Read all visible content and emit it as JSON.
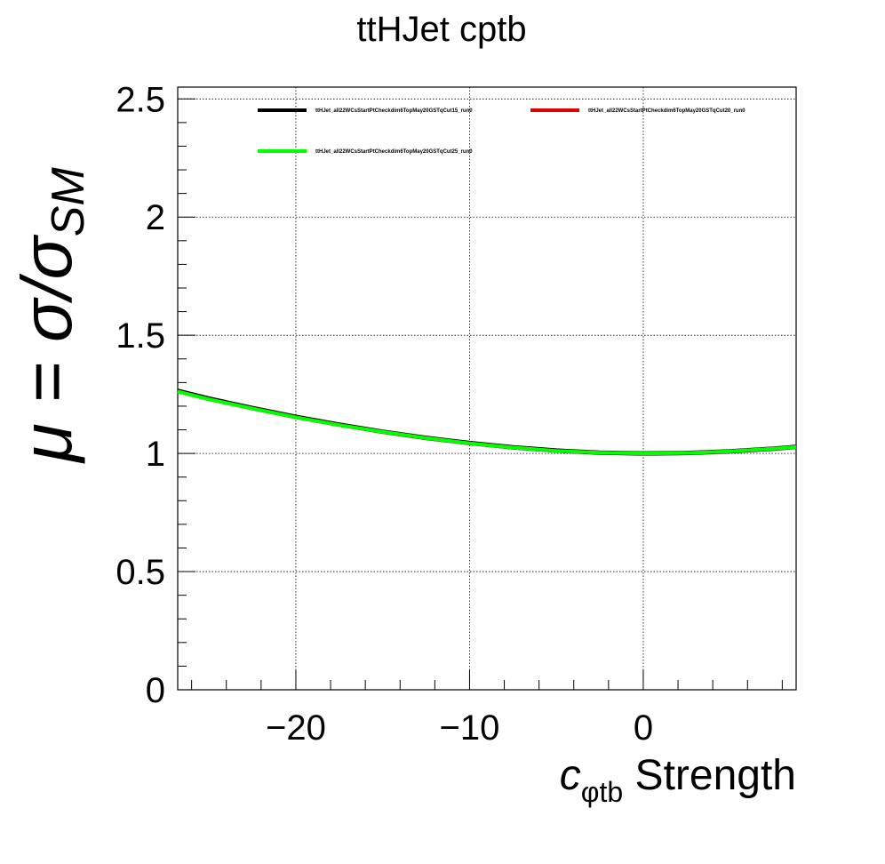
{
  "chart_data": {
    "type": "line",
    "title": "ttHJet cptb",
    "xlabel": {
      "symbol": "c",
      "subscript": "φtb",
      "text": "Strength"
    },
    "ylabel": {
      "prefix": "μ = σ/σ",
      "subscript": "SM"
    },
    "xlim": [
      -26.8,
      8.8
    ],
    "ylim": [
      0,
      2.55
    ],
    "grid": true,
    "legend_position": "top",
    "x_ticks": [
      -20,
      -10,
      0
    ],
    "x_tick_labels": [
      "−20",
      "−10",
      "0"
    ],
    "y_ticks": [
      0,
      0.5,
      1,
      1.5,
      2,
      2.5
    ],
    "y_tick_labels": [
      "0",
      "0.5",
      "1",
      "1.5",
      "2",
      "2.5"
    ],
    "x": [
      -26.8,
      -25,
      -22.5,
      -20,
      -17.5,
      -15,
      -12.5,
      -10,
      -7.5,
      -5,
      -2.5,
      0,
      2.5,
      5,
      7.5,
      8.8
    ],
    "series": [
      {
        "name": "ttHJet_all22WCsStartPtCheckdim6TopMay20GSTqCut15_run0",
        "color": "#000000",
        "values": [
          1.265,
          1.232,
          1.192,
          1.155,
          1.122,
          1.092,
          1.066,
          1.044,
          1.026,
          1.012,
          1.003,
          1.0,
          1.002,
          1.009,
          1.02,
          1.028
        ]
      },
      {
        "name": "ttHJet_all22WCsStartPtCheckdim6TopMay20GSTqCut20_run0",
        "color": "#e00000",
        "values": [
          1.262,
          1.229,
          1.19,
          1.153,
          1.12,
          1.091,
          1.065,
          1.043,
          1.025,
          1.011,
          1.003,
          1.0,
          1.002,
          1.009,
          1.02,
          1.027
        ]
      },
      {
        "name": "ttHJet_all22WCsStartPtCheckdim6TopMay20GSTqCut25_run0",
        "color": "#00ff00",
        "values": [
          1.262,
          1.229,
          1.19,
          1.153,
          1.12,
          1.091,
          1.065,
          1.043,
          1.025,
          1.011,
          1.003,
          1.0,
          1.002,
          1.009,
          1.02,
          1.027
        ]
      }
    ]
  }
}
